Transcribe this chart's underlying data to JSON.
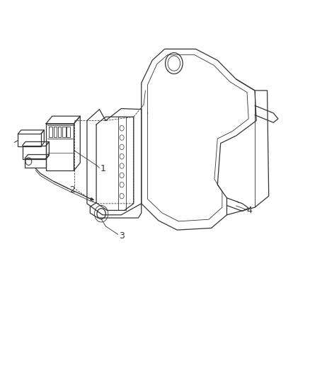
{
  "bg_color": "#ffffff",
  "line_color": "#333333",
  "figsize": [
    4.39,
    5.33
  ],
  "dpi": 100,
  "label_fontsize": 9
}
